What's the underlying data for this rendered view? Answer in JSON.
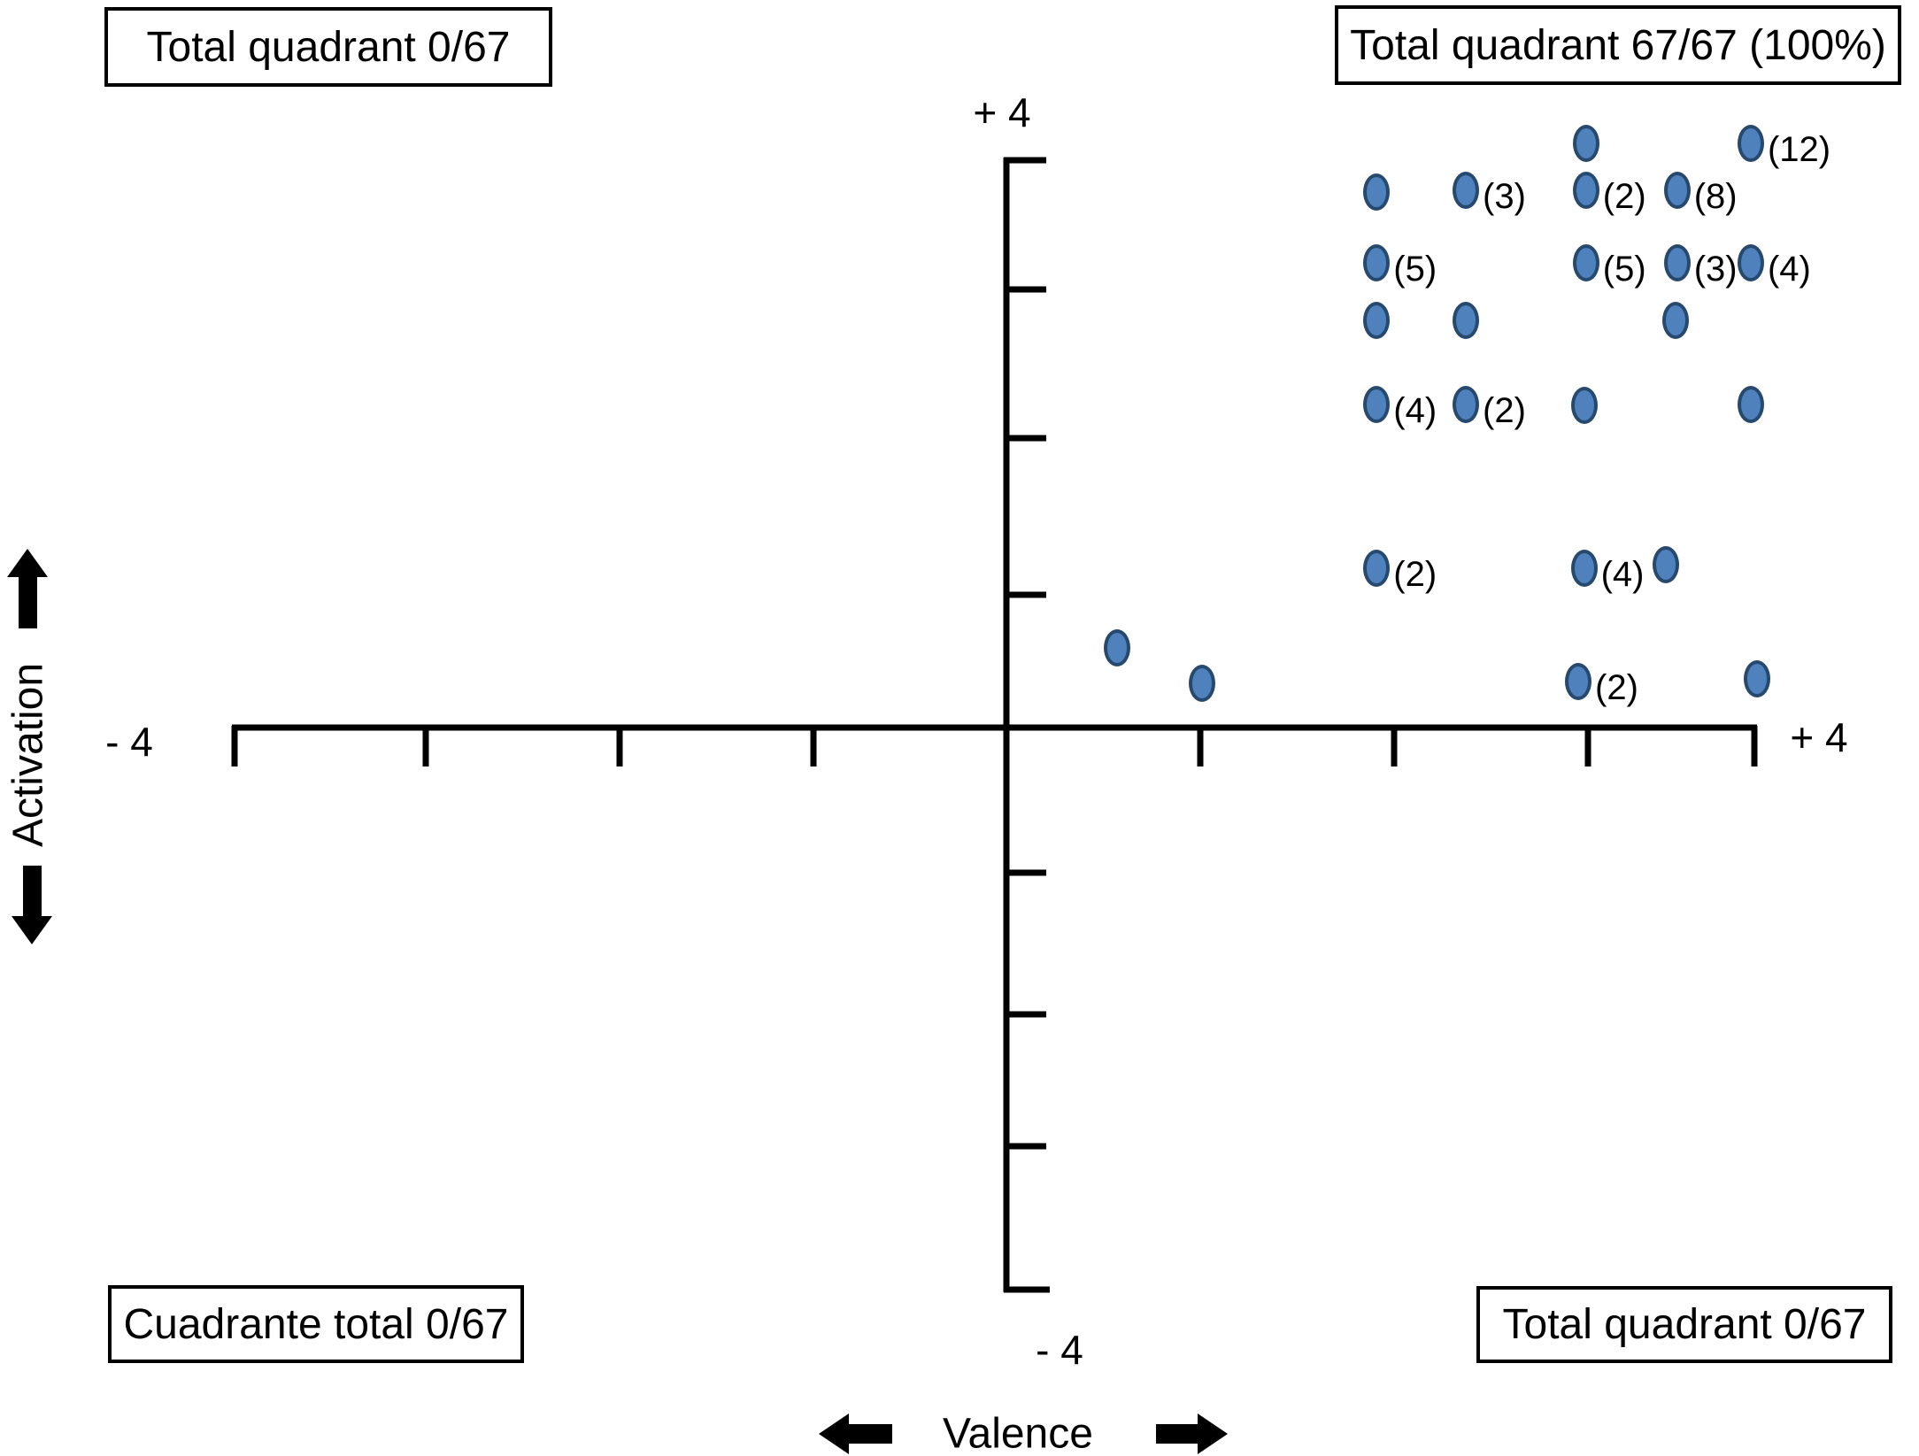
{
  "title_boxes": {
    "top_left": "Total quadrant 0/67",
    "top_right": "Total quadrant 67/67 (100%)",
    "bottom_left": "Cuadrante total 0/67",
    "bottom_right": "Total quadrant 0/67"
  },
  "axes": {
    "x_label": "Valence",
    "y_label": "Activation",
    "x_min_label": "- 4",
    "x_max_label": "+ 4",
    "y_min_label": "- 4",
    "y_max_label": "+ 4"
  },
  "colors": {
    "dot_fill": "#4f81bd",
    "dot_border": "#27496e",
    "axis": "#000000",
    "text": "#000000"
  },
  "icons": {
    "up_arrow": "up-arrow-icon",
    "down_arrow": "down-arrow-icon",
    "left_arrow": "left-arrow-icon",
    "right_arrow": "right-arrow-icon"
  },
  "chart_data": {
    "type": "scatter",
    "title": "",
    "xlabel": "Valence",
    "ylabel": "Activation",
    "xlim": [
      -4,
      4
    ],
    "ylim": [
      -4,
      4
    ],
    "grid": false,
    "legend": "none",
    "total_points": 67,
    "quadrant_totals": {
      "top_left": "0/67",
      "top_right": "67/67 (100%)",
      "bottom_left": "0/67",
      "bottom_right": "0/67"
    },
    "points": [
      {
        "valence": 2.99,
        "activation": 4.1,
        "count": 1,
        "label": ""
      },
      {
        "valence": 3.84,
        "activation": 4.1,
        "count": 12,
        "label": "(12)"
      },
      {
        "valence": 1.91,
        "activation": 3.76,
        "count": 1,
        "label": ""
      },
      {
        "valence": 2.37,
        "activation": 3.77,
        "count": 3,
        "label": "(3)"
      },
      {
        "valence": 2.99,
        "activation": 3.77,
        "count": 2,
        "label": "(2)"
      },
      {
        "valence": 3.46,
        "activation": 3.77,
        "count": 8,
        "label": "(8)"
      },
      {
        "valence": 1.91,
        "activation": 3.26,
        "count": 5,
        "label": "(5)"
      },
      {
        "valence": 2.99,
        "activation": 3.26,
        "count": 5,
        "label": "(5)"
      },
      {
        "valence": 3.46,
        "activation": 3.26,
        "count": 3,
        "label": "(3)"
      },
      {
        "valence": 3.84,
        "activation": 3.26,
        "count": 4,
        "label": "(4)"
      },
      {
        "valence": 1.91,
        "activation": 2.86,
        "count": 1,
        "label": ""
      },
      {
        "valence": 2.37,
        "activation": 2.86,
        "count": 1,
        "label": ""
      },
      {
        "valence": 3.45,
        "activation": 2.86,
        "count": 1,
        "label": ""
      },
      {
        "valence": 1.91,
        "activation": 2.27,
        "count": 4,
        "label": "(4)"
      },
      {
        "valence": 2.37,
        "activation": 2.27,
        "count": 2,
        "label": "(2)"
      },
      {
        "valence": 2.98,
        "activation": 2.26,
        "count": 1,
        "label": ""
      },
      {
        "valence": 3.84,
        "activation": 2.27,
        "count": 1,
        "label": ""
      },
      {
        "valence": 1.91,
        "activation": 1.12,
        "count": 2,
        "label": "(2)"
      },
      {
        "valence": 2.98,
        "activation": 1.12,
        "count": 4,
        "label": "(4)"
      },
      {
        "valence": 3.4,
        "activation": 1.14,
        "count": 1,
        "label": ""
      },
      {
        "valence": 0.57,
        "activation": 0.56,
        "count": 1,
        "label": ""
      },
      {
        "valence": 1.01,
        "activation": 0.31,
        "count": 1,
        "label": ""
      },
      {
        "valence": 2.95,
        "activation": 0.32,
        "count": 2,
        "label": "(2)"
      },
      {
        "valence": 3.87,
        "activation": 0.34,
        "count": 1,
        "label": ""
      }
    ]
  }
}
